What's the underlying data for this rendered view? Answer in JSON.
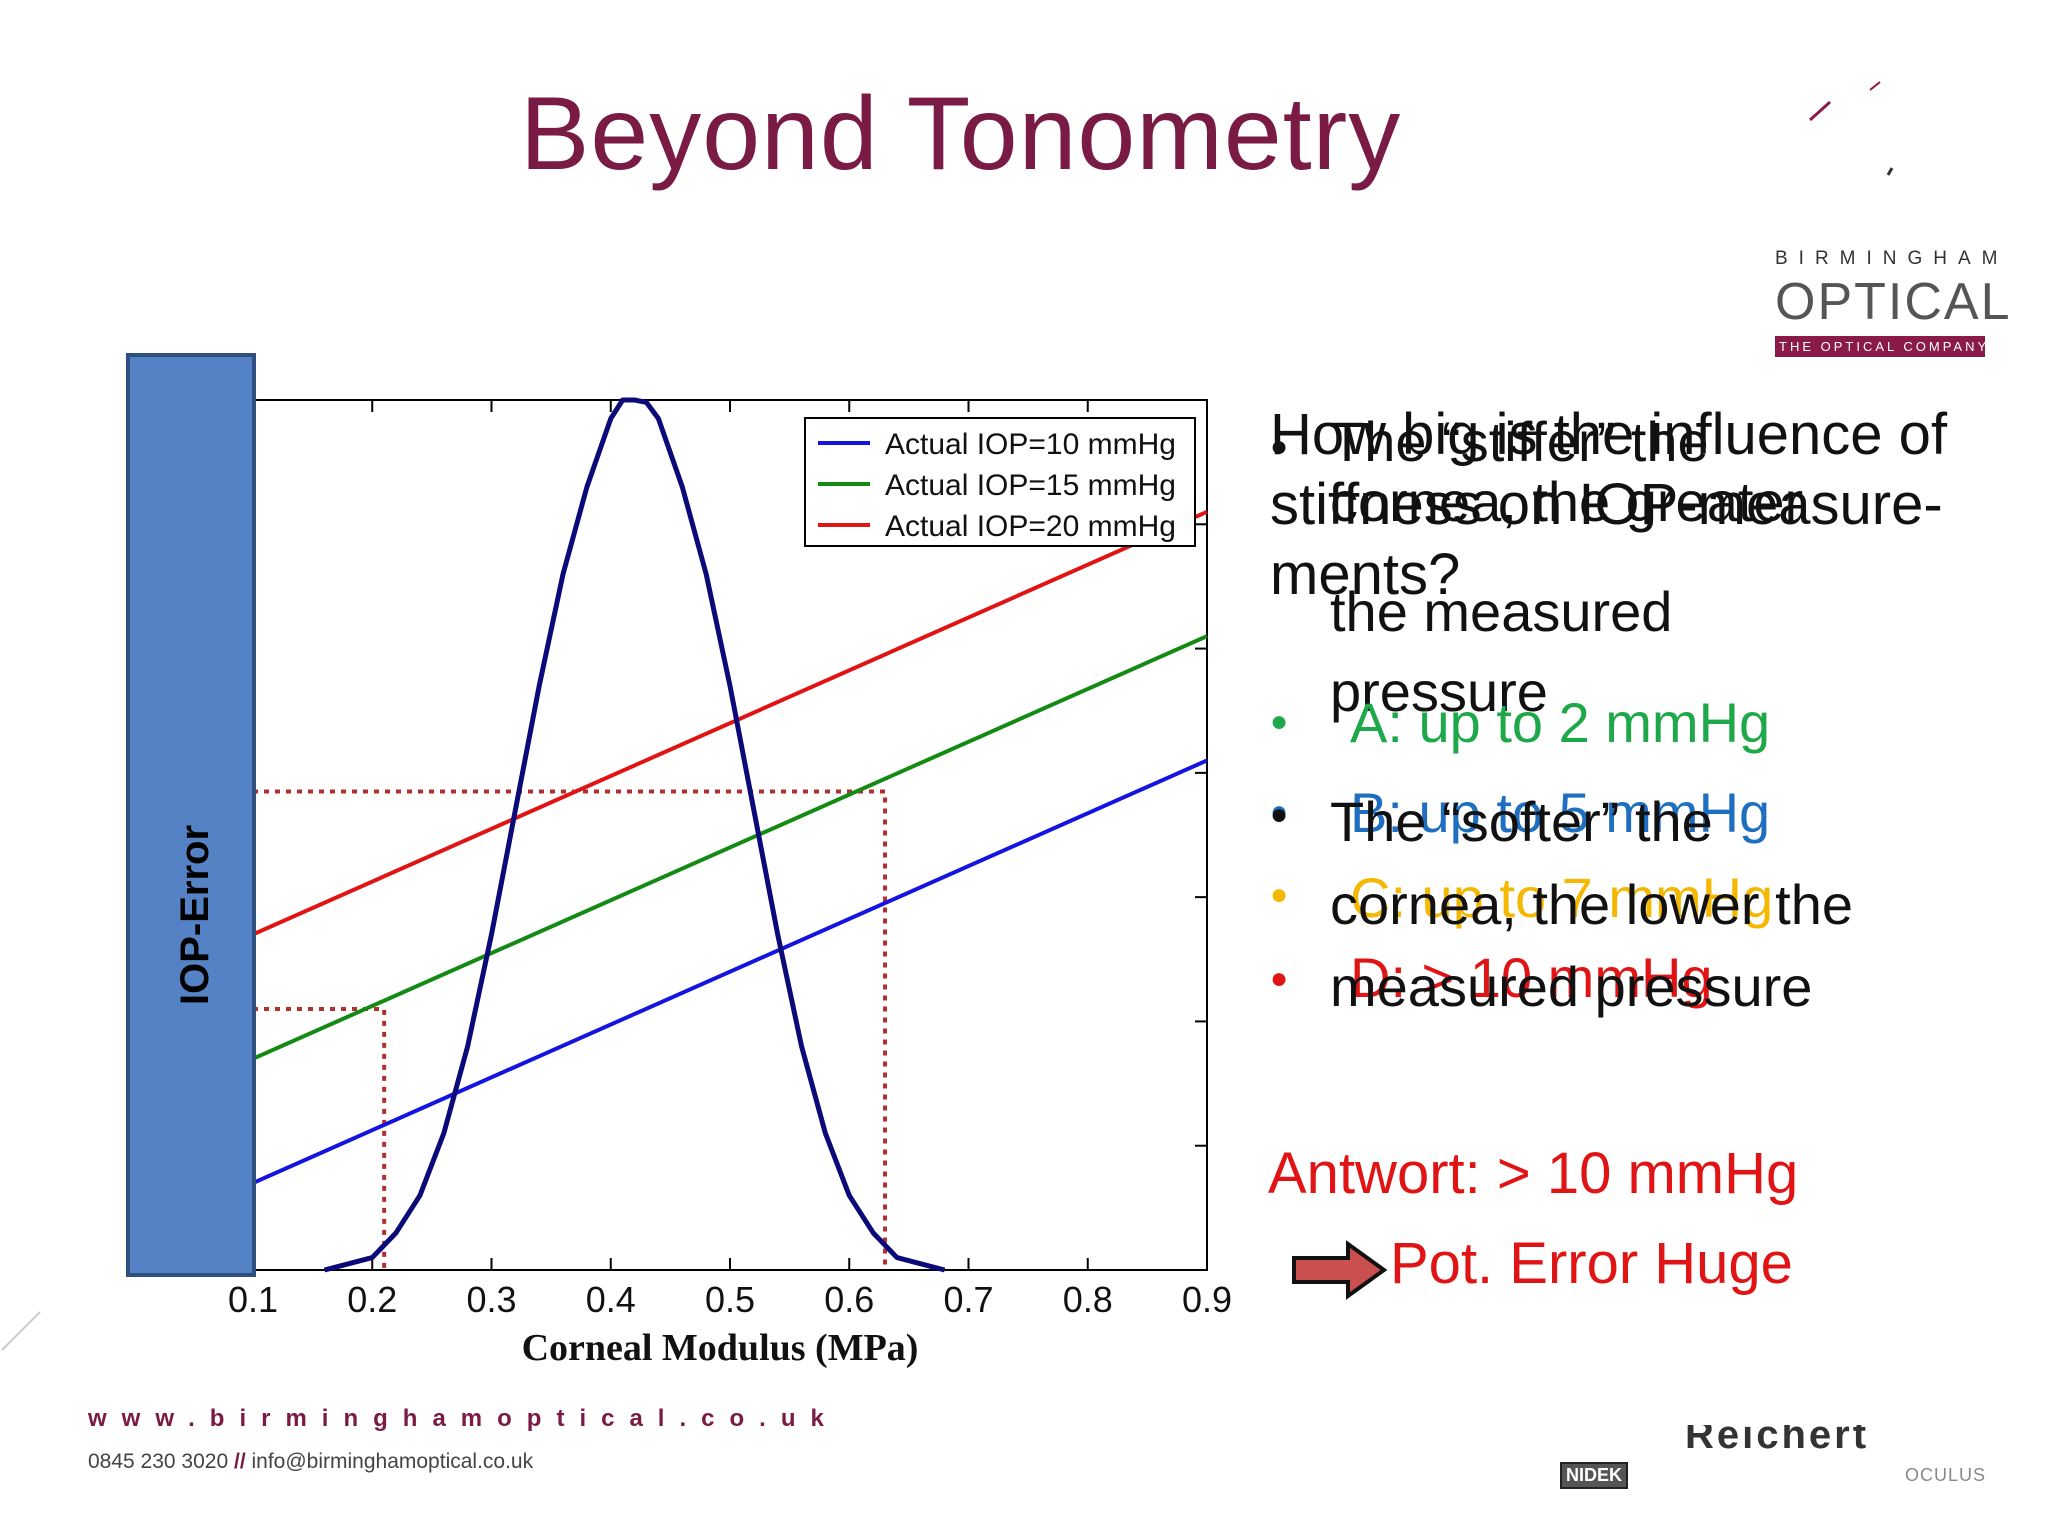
{
  "slide": {
    "title": "Beyond Tonometry",
    "logo": {
      "top": "BIRMINGHAM",
      "main": "OPTICAL",
      "tagline": "THE OPTICAL COMPANY"
    },
    "colors": {
      "title": "#7a1b45",
      "brand": "#8a1a4a",
      "answer": "#e01414",
      "option_a": "#1fa84a",
      "option_b": "#1f6fc0",
      "option_c": "#f5b800",
      "option_d": "#e01414"
    }
  },
  "text_panel": {
    "question": [
      "How big is the influence of",
      "stiffness on IOP-measure-",
      "ments?"
    ],
    "bullet1": [
      "The “stiffer” the",
      "cornea, the greater",
      "the measured",
      "pressure"
    ],
    "bullet2": [
      "The “softer” the",
      "cornea, the lower the",
      "measured pressure"
    ],
    "options": [
      {
        "label": "A: up to 2 mmHg",
        "color": "#1fa84a"
      },
      {
        "label": "B: up to 5 mmHg",
        "color": "#1f6fc0"
      },
      {
        "label": "C: up to 7 mmHg",
        "color": "#f5b800"
      },
      {
        "label": "D: > 10 mmHg",
        "color": "#e01414"
      }
    ],
    "answer": "Antwort: > 10 mmHg",
    "conclusion": "Pot. Error Huge"
  },
  "footer": {
    "url": "www.birminghamoptical",
    "url_tld": ".co.uk",
    "phone": "0845 230 3020",
    "separator": "//",
    "email": "info@birminghamoptical.co.uk",
    "partner_logos": [
      "NIDEK",
      "Reichert",
      "OCULUS"
    ]
  },
  "chart_data": {
    "type": "line",
    "ylabel": "IOP-Error",
    "xlabel": "Corneal Modulus (MPa)",
    "xlim": [
      0.1,
      0.9
    ],
    "ylim": [
      0,
      7
    ],
    "x_ticks": [
      "0.1",
      "0.2",
      "0.3",
      "0.4",
      "0.5",
      "0.6",
      "0.7",
      "0.8",
      "0.9"
    ],
    "legend_position": "top-right",
    "series": [
      {
        "name": "Actual IOP=10 mmHg",
        "color": "#1414e0",
        "x": [
          0.1,
          0.9
        ],
        "y": [
          0.7,
          4.1
        ]
      },
      {
        "name": "Actual IOP=15 mmHg",
        "color": "#138a13",
        "x": [
          0.1,
          0.9
        ],
        "y": [
          1.7,
          5.1
        ]
      },
      {
        "name": "Actual IOP=20 mmHg",
        "color": "#e01414",
        "x": [
          0.1,
          0.9
        ],
        "y": [
          2.7,
          6.1
        ]
      }
    ],
    "distribution": {
      "color": "#0a0a78",
      "x": [
        0.16,
        0.18,
        0.2,
        0.22,
        0.24,
        0.26,
        0.28,
        0.3,
        0.32,
        0.34,
        0.36,
        0.38,
        0.4,
        0.41,
        0.42,
        0.43,
        0.44,
        0.46,
        0.48,
        0.5,
        0.52,
        0.54,
        0.56,
        0.58,
        0.6,
        0.62,
        0.64,
        0.66,
        0.68
      ],
      "y": [
        0.0,
        0.05,
        0.1,
        0.3,
        0.6,
        1.1,
        1.8,
        2.7,
        3.7,
        4.7,
        5.6,
        6.3,
        6.85,
        7.0,
        7.0,
        6.98,
        6.85,
        6.3,
        5.6,
        4.7,
        3.7,
        2.7,
        1.8,
        1.1,
        0.6,
        0.3,
        0.1,
        0.05,
        0.0
      ]
    },
    "reference_lines": [
      {
        "x": 0.21,
        "y": 2.1
      },
      {
        "x": 0.63,
        "y": 3.85
      }
    ]
  }
}
